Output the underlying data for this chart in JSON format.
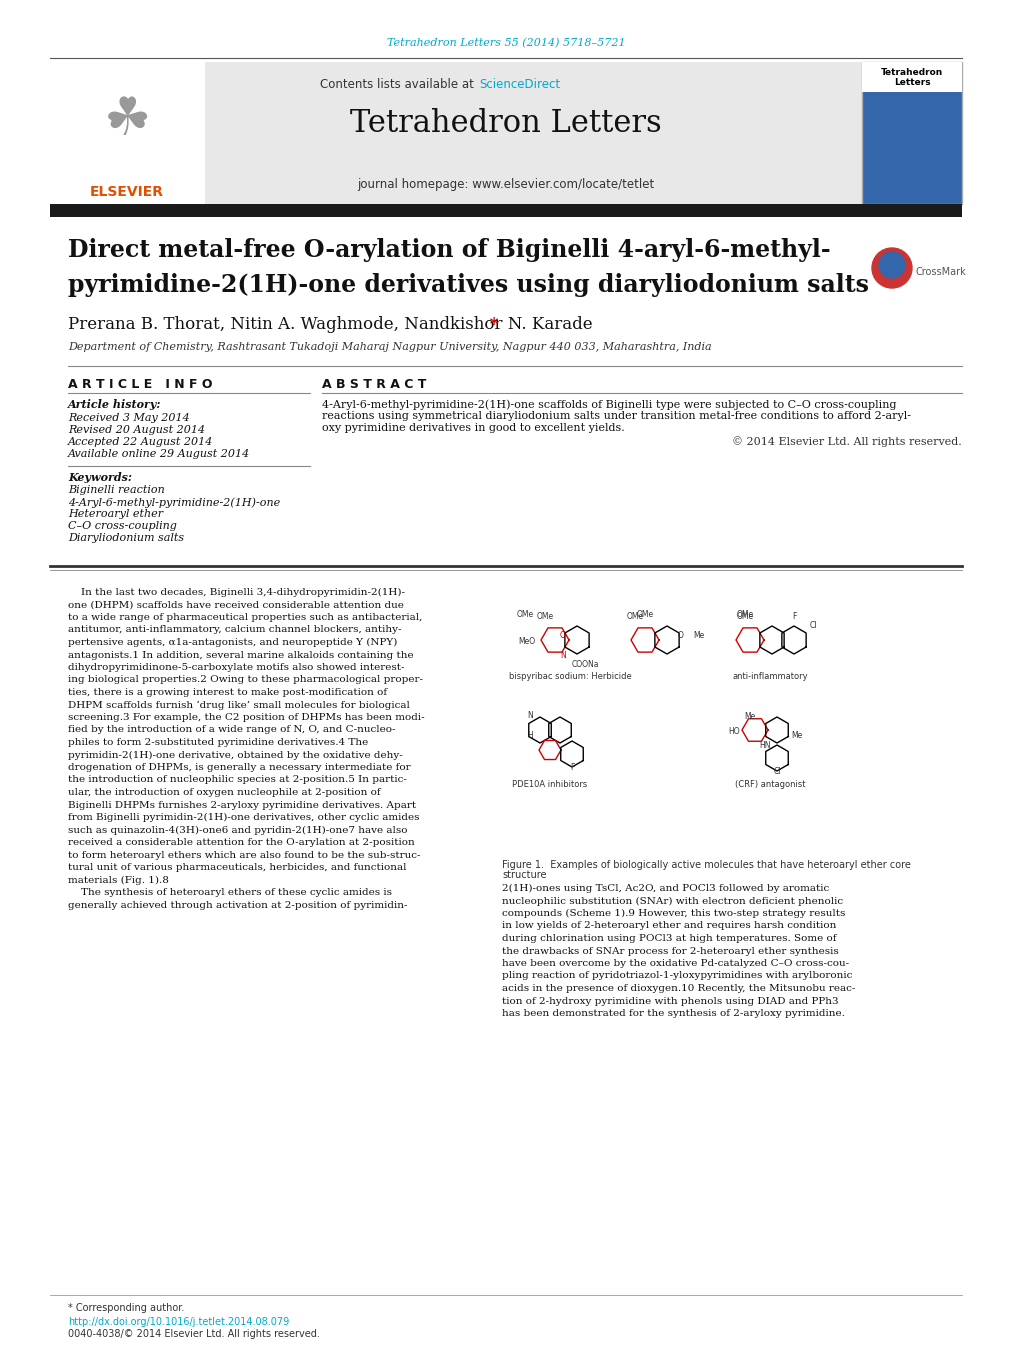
{
  "bg_color": "#ffffff",
  "top_citation": "Tetrahedron Letters 55 (2014) 5718–5721",
  "top_citation_color": "#00aacc",
  "header_bg": "#e8e8e8",
  "contents_text": "Contents lists available at ",
  "science_direct": "ScienceDirect",
  "science_direct_color": "#00aacc",
  "journal_name": "Tetrahedron Letters",
  "journal_homepage": "journal homepage: www.elsevier.com/locate/tetlet",
  "thick_bar_color": "#1a1a1a",
  "article_title_line1": "Direct metal-free O-arylation of Biginelli 4-aryl-6-methyl-",
  "article_title_line2": "pyrimidine-2(1H)-one derivatives using diaryliodonium salts",
  "authors": "Prerana B. Thorat, Nitin A. Waghmode, Nandkishor N. Karade",
  "authors_star": " *",
  "affiliation": "Department of Chemistry, Rashtrasant Tukadoji Maharaj Nagpur University, Nagpur 440 033, Maharashtra, India",
  "article_info_header": "A R T I C L E   I N F O",
  "abstract_header": "A B S T R A C T",
  "article_history_label": "Article history:",
  "received": "Received 3 May 2014",
  "revised": "Revised 20 August 2014",
  "accepted": "Accepted 22 August 2014",
  "available": "Available online 29 August 2014",
  "keywords_label": "Keywords:",
  "keywords": [
    "Biginelli reaction",
    "4-Aryl-6-methyl-pyrimidine-2(1H)-one",
    "Heteroaryl ether",
    "C–O cross-coupling",
    "Diaryliodonium salts"
  ],
  "abstract_text": "4-Aryl-6-methyl-pyrimidine-2(1H)-one scaffolds of Biginelli type were subjected to C–O cross-coupling reactions using symmetrical diaryliodonium salts under transition metal-free conditions to afford 2-aryloxy pyrimidine derivatives in good to excellent yields.",
  "copyright": "© 2014 Elsevier Ltd. All rights reserved.",
  "separator_color": "#888888",
  "thick_line_color": "#000000",
  "footer_doi": "http://dx.doi.org/10.1016/j.tetlet.2014.08.079",
  "footer_issn": "0040-4038/© 2014 Elsevier Ltd. All rights reserved.",
  "star_color": "#cc0000",
  "body_left_lines": [
    "    In the last two decades, Biginelli 3,4-dihydropyrimidin-2(1H)-",
    "one (DHPM) scaffolds have received considerable attention due",
    "to a wide range of pharmaceutical properties such as antibacterial,",
    "antitumor, anti-inflammatory, calcium channel blockers, antihy-",
    "pertensive agents, α1a-antagonists, and neuropeptide Y (NPY)",
    "antagonists.1 In addition, several marine alkaloids containing the",
    "dihydropyrimidinone-5-carboxylate motifs also showed interest-",
    "ing biological properties.2 Owing to these pharmacological proper-",
    "ties, there is a growing interest to make post-modification of",
    "DHPM scaffolds furnish ‘drug like’ small molecules for biological",
    "screening.3 For example, the C2 position of DHPMs has been modi-",
    "fied by the introduction of a wide range of N, O, and C-nucleo-",
    "philes to form 2-substituted pyrimidine derivatives.4 The",
    "pyrimidin-2(1H)-one derivative, obtained by the oxidative dehy-",
    "drogenation of DHPMs, is generally a necessary intermediate for",
    "the introduction of nucleophilic species at 2-position.5 In partic-",
    "ular, the introduction of oxygen nucleophile at 2-position of",
    "Biginelli DHPMs furnishes 2-aryloxy pyrimidine derivatives. Apart",
    "from Biginelli pyrimidin-2(1H)-one derivatives, other cyclic amides",
    "such as quinazolin-4(3H)-one6 and pyridin-2(1H)-one7 have also",
    "received a considerable attention for the O-arylation at 2-position",
    "to form heteroaryl ethers which are also found to be the sub-struc-",
    "tural unit of various pharmaceuticals, herbicides, and functional",
    "materials (Fig. 1).8",
    "    The synthesis of heteroaryl ethers of these cyclic amides is",
    "generally achieved through activation at 2-position of pyrimidin-"
  ],
  "right_col_lines": [
    "2(1H)-ones using TsCl, Ac2O, and POCl3 followed by aromatic",
    "nucleophilic substitution (SNAr) with electron deficient phenolic",
    "compounds (Scheme 1).9 However, this two-step strategy results",
    "in low yields of 2-heteroaryl ether and requires harsh condition",
    "during chlorination using POCl3 at high temperatures. Some of",
    "the drawbacks of SNAr process for 2-heteroaryl ether synthesis",
    "have been overcome by the oxidative Pd-catalyzed C–O cross-cou-",
    "pling reaction of pyridotriazol-1-yloxypyrimidines with arylboronic",
    "acids in the presence of dioxygen.10 Recently, the Mitsunobu reac-",
    "tion of 2-hydroxy pyrimidine with phenols using DIAD and PPh3",
    "has been demonstrated for the synthesis of 2-aryloxy pyrimidine."
  ],
  "abstract_lines": [
    "4-Aryl-6-methyl-pyrimidine-2(1H)-one scaffolds of Biginelli type were subjected to C–O cross-coupling",
    "reactions using symmetrical diaryliodonium salts under transition metal-free conditions to afford 2-aryl-",
    "oxy pyrimidine derivatives in good to excellent yields."
  ]
}
